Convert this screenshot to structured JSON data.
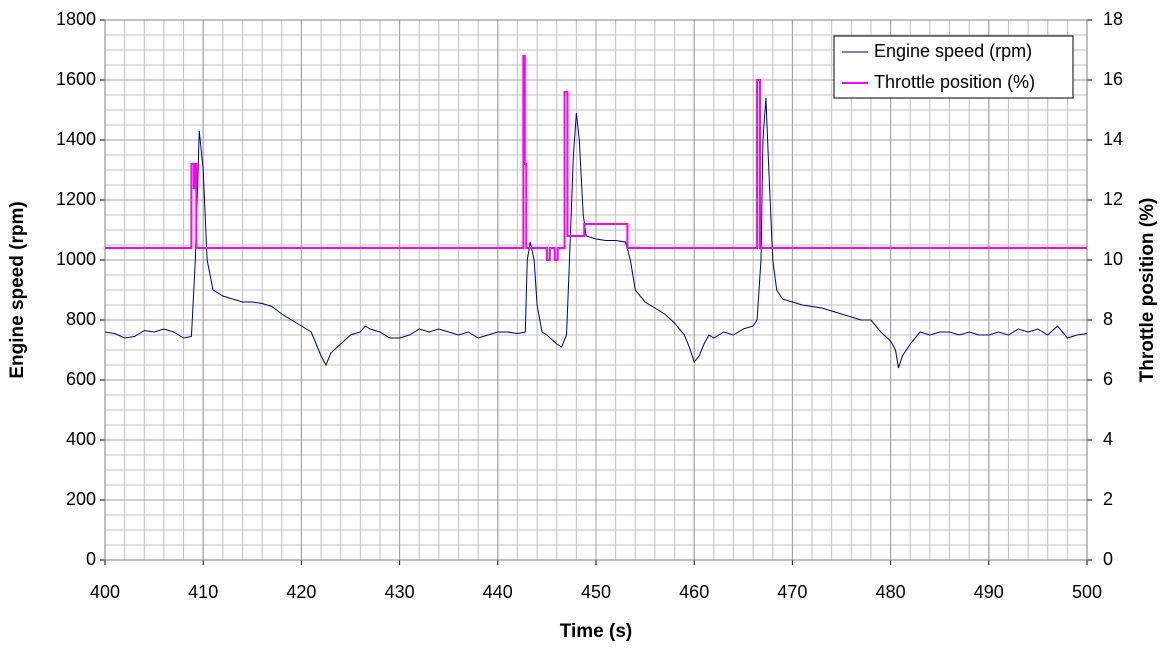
{
  "chart_data": {
    "type": "line",
    "x_label": "Time (s)",
    "y_label": "Engine speed (rpm)",
    "y2_label": "Throttle position (%)",
    "xlim": [
      400,
      500
    ],
    "xticks": [
      400,
      410,
      420,
      430,
      440,
      450,
      460,
      470,
      480,
      490,
      500
    ],
    "ylim": [
      0,
      1800
    ],
    "yticks": [
      0,
      200,
      400,
      600,
      800,
      1000,
      1200,
      1400,
      1600,
      1800
    ],
    "y2lim": [
      0,
      18
    ],
    "y2ticks": [
      0,
      2,
      4,
      6,
      8,
      10,
      12,
      14,
      16,
      18
    ],
    "grid": true,
    "minor_grid": {
      "x": 2,
      "y": 50
    },
    "legend": "top-right",
    "series": [
      {
        "name": "Engine speed (rpm)",
        "color": "#000080",
        "axis": "y",
        "x": [
          400,
          401,
          402,
          403,
          404,
          405,
          406,
          407,
          408,
          408.8,
          409.2,
          409.6,
          410,
          410.4,
          411,
          412,
          413,
          414,
          415,
          416,
          417,
          418,
          419,
          420,
          421,
          421.5,
          422,
          422.5,
          423,
          424,
          425,
          426,
          426.5,
          427,
          428,
          429,
          430,
          431,
          432,
          433,
          434,
          435,
          436,
          437,
          438,
          439,
          440,
          441,
          442,
          442.8,
          443,
          443.3,
          443.7,
          444,
          444.5,
          445,
          446,
          446.5,
          447,
          447.3,
          447.7,
          448,
          448.3,
          448.7,
          449,
          450,
          451,
          452,
          453,
          453.5,
          454,
          455,
          456,
          457,
          458,
          459,
          459.5,
          460,
          460.5,
          461,
          461.5,
          462,
          463,
          464,
          465,
          466,
          466.4,
          466.8,
          467,
          467.3,
          467.6,
          468,
          468.4,
          469,
          470,
          471,
          472,
          473,
          474,
          475,
          476,
          477,
          478,
          479,
          480,
          480.5,
          480.8,
          481.2,
          482,
          483,
          484,
          485,
          486,
          487,
          488,
          489,
          490,
          491,
          492,
          493,
          494,
          495,
          496,
          497,
          498,
          499,
          500
        ],
        "values": [
          760,
          755,
          740,
          745,
          765,
          760,
          770,
          760,
          740,
          745,
          1000,
          1430,
          1300,
          1000,
          900,
          880,
          870,
          860,
          860,
          855,
          845,
          820,
          800,
          780,
          760,
          720,
          680,
          650,
          690,
          720,
          750,
          760,
          780,
          770,
          760,
          740,
          740,
          750,
          770,
          760,
          770,
          760,
          750,
          760,
          740,
          750,
          760,
          760,
          755,
          760,
          1000,
          1060,
          1000,
          850,
          760,
          750,
          720,
          710,
          750,
          1000,
          1350,
          1490,
          1400,
          1150,
          1080,
          1070,
          1065,
          1065,
          1060,
          1000,
          900,
          860,
          840,
          820,
          790,
          750,
          710,
          660,
          680,
          720,
          750,
          740,
          760,
          750,
          770,
          780,
          800,
          1000,
          1400,
          1540,
          1300,
          1000,
          900,
          870,
          860,
          850,
          845,
          840,
          830,
          820,
          810,
          800,
          800,
          760,
          730,
          700,
          640,
          680,
          720,
          760,
          750,
          760,
          760,
          750,
          760,
          750,
          750,
          760,
          750,
          770,
          760,
          770,
          750,
          780,
          740,
          750,
          755
        ]
      },
      {
        "name": "Throttle position (%)",
        "color": "#ff00ff",
        "axis": "y2",
        "drawstyle": "steps-post",
        "x": [
          400,
          408.8,
          409.05,
          409.15,
          409.3,
          442.6,
          442.75,
          442.9,
          445.0,
          445.3,
          445.8,
          446.1,
          446.8,
          447.1,
          448.8,
          453.2,
          466.4,
          466.7,
          500
        ],
        "values": [
          10.4,
          13.2,
          12.4,
          13.2,
          10.4,
          16.8,
          13.2,
          10.4,
          10.0,
          10.4,
          10.0,
          10.4,
          15.6,
          10.8,
          11.2,
          10.4,
          16.0,
          10.4,
          10.4
        ]
      }
    ]
  }
}
